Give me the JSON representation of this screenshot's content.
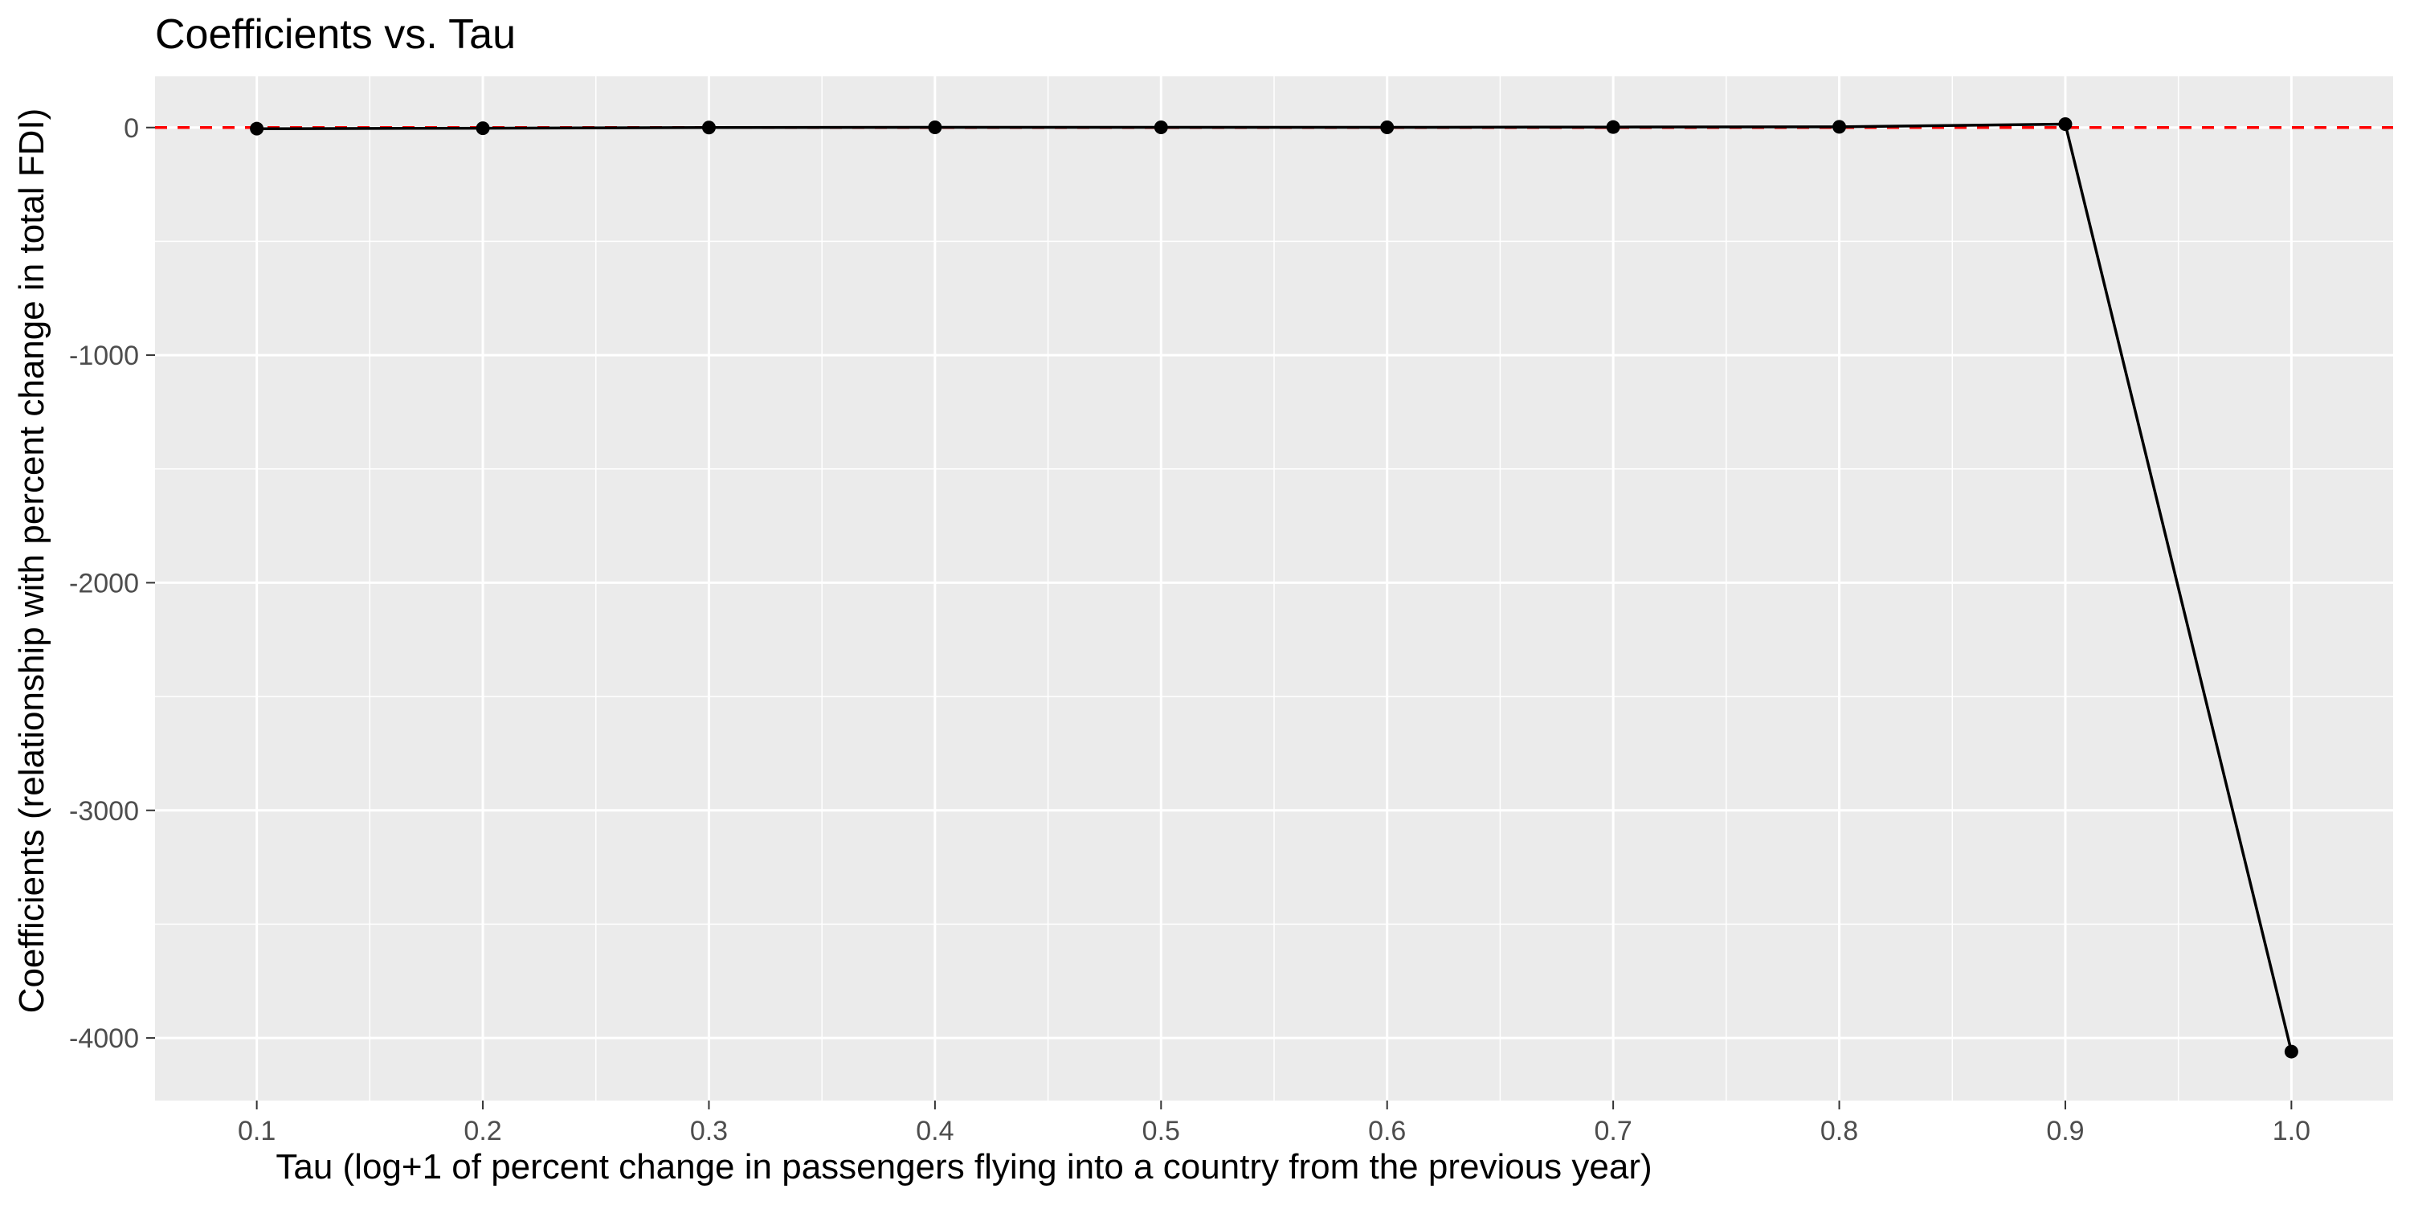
{
  "chart_data": {
    "type": "line",
    "title": "Coefficients vs. Tau",
    "xlabel": "Tau (log+1 of percent change in passengers flying into a country from the previous year)",
    "ylabel": "Coefficients (relationship with percent change in total FDI)",
    "x": [
      0.1,
      0.2,
      0.3,
      0.4,
      0.5,
      0.6,
      0.7,
      0.8,
      0.9,
      1.0
    ],
    "series": [
      {
        "values": [
          -5,
          -3,
          0,
          1,
          1,
          1,
          2,
          3,
          15,
          -4060
        ]
      }
    ],
    "xlim": [
      0.055,
      1.045
    ],
    "ylim": [
      -4275,
      225
    ],
    "x_ticks": [
      0.1,
      0.2,
      0.3,
      0.4,
      0.5,
      0.6,
      0.7,
      0.8,
      0.9,
      1.0
    ],
    "x_tick_labels": [
      "0.1",
      "0.2",
      "0.3",
      "0.4",
      "0.5",
      "0.6",
      "0.7",
      "0.8",
      "0.9",
      "1.0"
    ],
    "y_ticks": [
      0,
      -1000,
      -2000,
      -3000,
      -4000
    ],
    "y_tick_labels": [
      "0",
      "-1000",
      "-2000",
      "-3000",
      "-4000"
    ],
    "reference_line": {
      "y": 0,
      "style": "dashed",
      "color": "#ff0000"
    },
    "grid": true,
    "legend": "none",
    "colors": {
      "panel_background": "#ebebeb",
      "grid_major": "#ffffff",
      "line": "#000000",
      "points": "#000000"
    }
  }
}
